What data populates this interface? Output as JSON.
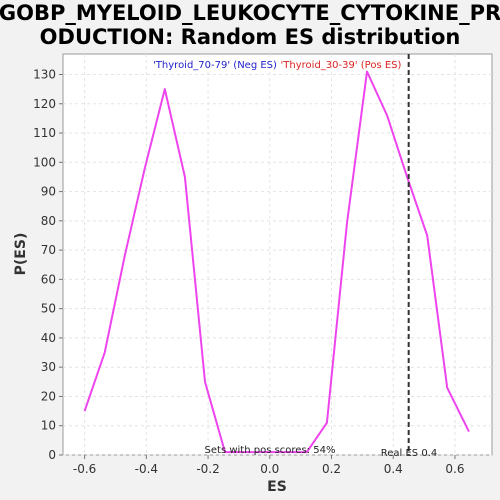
{
  "chart_data": {
    "type": "line",
    "title_line1": "GOBP_MYELOID_LEUKOCYTE_CYTOKINE_PR",
    "title_line2": "ODUCTION: Random ES distribution",
    "xlabel": "ES",
    "ylabel": "P(ES)",
    "xlim": [
      -0.67,
      0.72
    ],
    "ylim": [
      0,
      137
    ],
    "xticks": [
      -0.6,
      -0.4,
      -0.2,
      0.0,
      0.2,
      0.4,
      0.6
    ],
    "xtick_labels": [
      "-0.6",
      "-0.4",
      "-0.2",
      "0.0",
      "0.2",
      "0.4",
      "0.6"
    ],
    "yticks": [
      0,
      10,
      20,
      30,
      40,
      50,
      60,
      70,
      80,
      90,
      100,
      110,
      120,
      130
    ],
    "ytick_labels": [
      "0",
      "10",
      "20",
      "30",
      "40",
      "50",
      "60",
      "70",
      "80",
      "90",
      "100",
      "110",
      "120",
      "130"
    ],
    "grid": true,
    "legend": {
      "neg_label": "'Thyroid_70-79' (Neg ES)",
      "pos_label": "'Thyroid_30-39' (Pos ES)",
      "neg_color": "#2222cc",
      "pos_color": "#dd2222",
      "placement": "top"
    },
    "series": [
      {
        "color": "#ee44ee",
        "x": [
          -0.6,
          -0.535,
          -0.47,
          -0.405,
          -0.34,
          -0.275,
          -0.21,
          -0.145,
          -0.08,
          -0.015,
          0.05,
          0.12,
          0.185,
          0.25,
          0.315,
          0.38,
          0.445,
          0.51,
          0.575,
          0.645
        ],
        "y": [
          15,
          35,
          68,
          98,
          125,
          95,
          25,
          1,
          1,
          1,
          1,
          1,
          11,
          79,
          131,
          116,
          95,
          75,
          23,
          8
        ]
      }
    ],
    "real_es": {
      "value": 0.45,
      "label": "Real ES 0.4",
      "color": "#333333"
    },
    "annotation": "Sets with pos scores: 54%"
  }
}
